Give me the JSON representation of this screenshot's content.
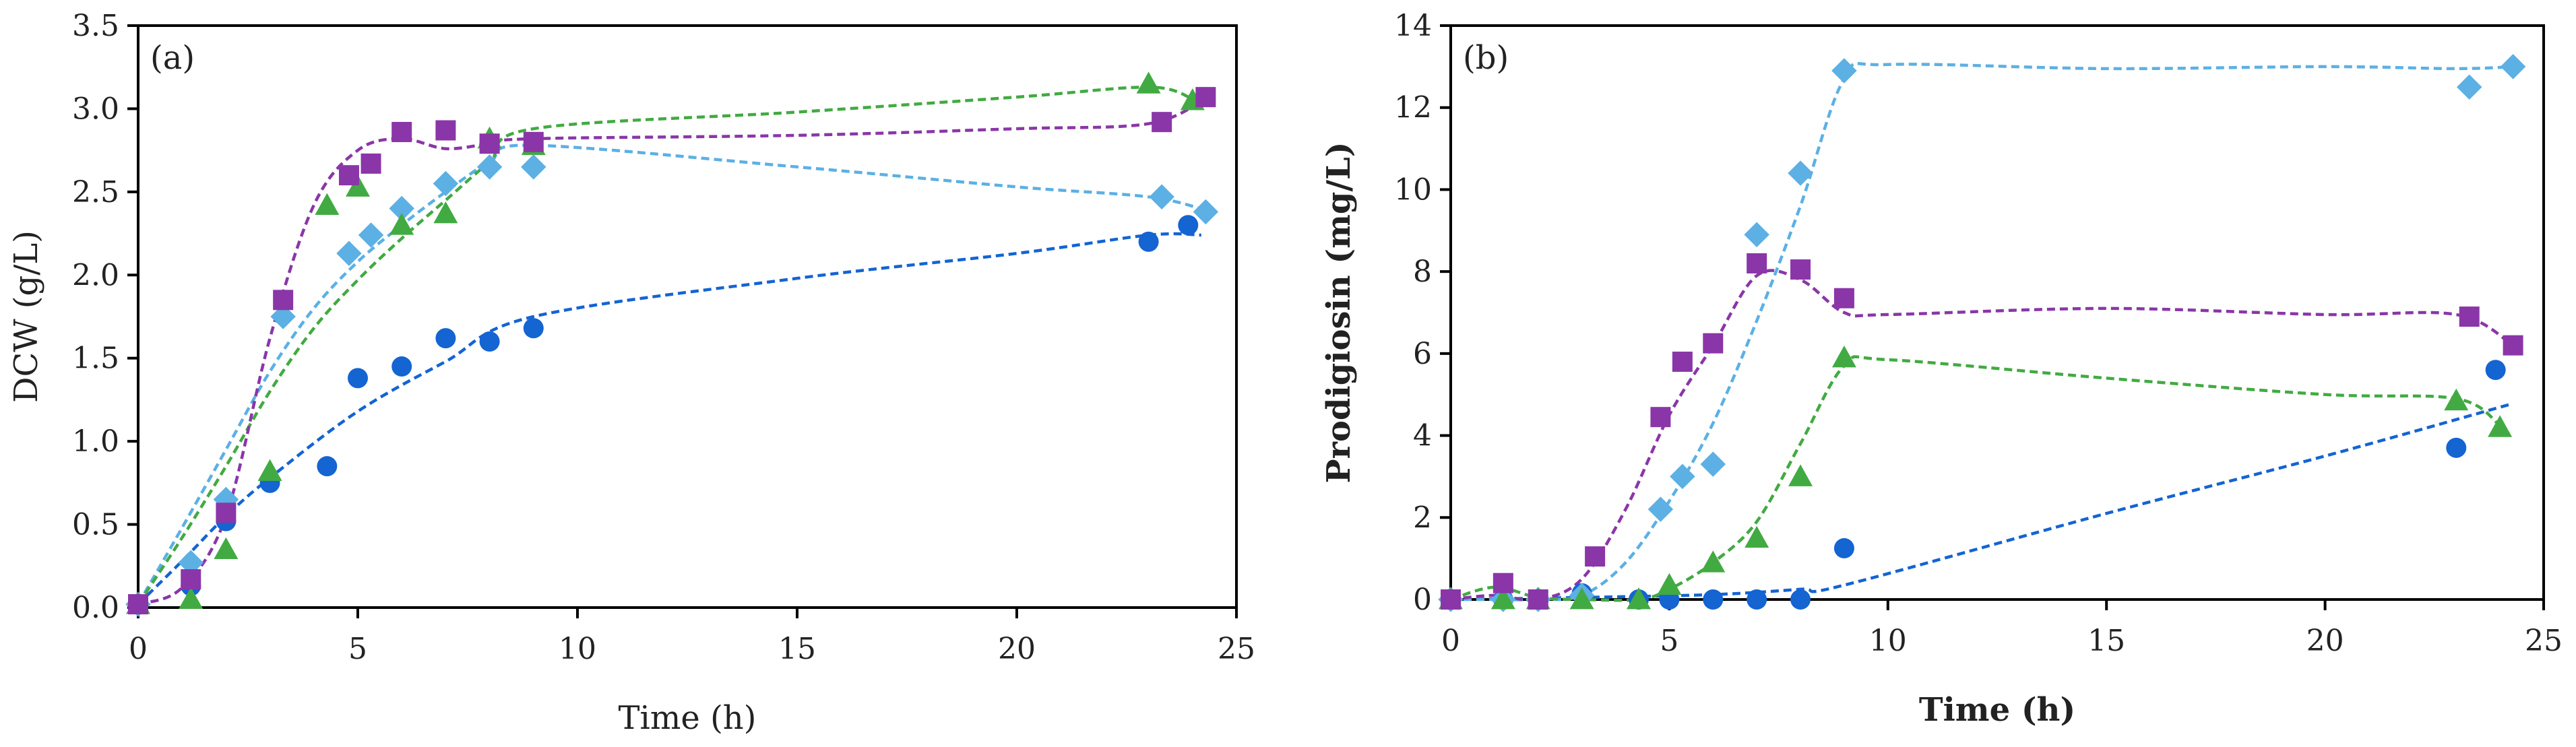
{
  "colors": {
    "blue": "#1464d2",
    "lightblue": "#5cb0e4",
    "green": "#42aa42",
    "purple": "#8a36a8"
  },
  "chart_data": [
    {
      "type": "scatter",
      "panel_label": "(a)",
      "xlabel": "Time (h)",
      "ylabel": "DCW (g/L)",
      "xlabel_bold": false,
      "ylabel_bold": false,
      "xlim": [
        0,
        25
      ],
      "ylim": [
        0,
        3.5
      ],
      "xticks": [
        0,
        5,
        10,
        15,
        20,
        25
      ],
      "yticks": [
        0,
        0.5,
        1,
        1.5,
        2,
        2.5,
        3,
        3.5
      ],
      "ytick_labels": [
        "0.0",
        "0.5",
        "1.0",
        "1.5",
        "2.0",
        "2.5",
        "3.0",
        "3.5"
      ],
      "grid": false,
      "series": [
        {
          "name": "blue circles",
          "color": "blue",
          "marker": "circle",
          "points": [
            [
              0,
              0.02
            ],
            [
              1.2,
              0.13
            ],
            [
              2.0,
              0.52
            ],
            [
              3.0,
              0.75
            ],
            [
              4.3,
              0.85
            ],
            [
              5.0,
              1.38
            ],
            [
              6.0,
              1.45
            ],
            [
              7.0,
              1.62
            ],
            [
              8.0,
              1.6
            ],
            [
              9.0,
              1.68
            ],
            [
              23.0,
              2.2
            ],
            [
              23.9,
              2.3
            ]
          ],
          "fit": [
            [
              0,
              0.02
            ],
            [
              1,
              0.28
            ],
            [
              2,
              0.55
            ],
            [
              3,
              0.78
            ],
            [
              5,
              1.18
            ],
            [
              7,
              1.48
            ],
            [
              9,
              1.75
            ],
            [
              15,
              1.98
            ],
            [
              20,
              2.13
            ],
            [
              23,
              2.24
            ],
            [
              24.2,
              2.24
            ]
          ]
        },
        {
          "name": "light blue diamonds",
          "color": "lightblue",
          "marker": "diamond",
          "points": [
            [
              0,
              0.02
            ],
            [
              1.2,
              0.27
            ],
            [
              2.0,
              0.65
            ],
            [
              3.3,
              1.75
            ],
            [
              4.8,
              2.13
            ],
            [
              5.3,
              2.24
            ],
            [
              6.0,
              2.4
            ],
            [
              7.0,
              2.55
            ],
            [
              8.0,
              2.65
            ],
            [
              9.0,
              2.65
            ],
            [
              23.3,
              2.47
            ],
            [
              24.3,
              2.38
            ]
          ],
          "fit": [
            [
              0,
              0.02
            ],
            [
              1,
              0.48
            ],
            [
              2,
              0.95
            ],
            [
              3,
              1.42
            ],
            [
              4,
              1.8
            ],
            [
              5,
              2.08
            ],
            [
              6,
              2.3
            ],
            [
              7,
              2.5
            ],
            [
              8,
              2.68
            ],
            [
              9,
              2.78
            ],
            [
              15,
              2.65
            ],
            [
              20,
              2.53
            ],
            [
              23,
              2.47
            ],
            [
              24.3,
              2.39
            ]
          ]
        },
        {
          "name": "green triangles",
          "color": "green",
          "marker": "triangle",
          "points": [
            [
              0,
              0.02
            ],
            [
              1.2,
              0.05
            ],
            [
              2.0,
              0.35
            ],
            [
              3.0,
              0.82
            ],
            [
              4.3,
              2.42
            ],
            [
              5.0,
              2.53
            ],
            [
              6.0,
              2.3
            ],
            [
              7.0,
              2.37
            ],
            [
              8.0,
              2.82
            ],
            [
              9.0,
              2.78
            ],
            [
              23.0,
              3.15
            ],
            [
              24.0,
              3.05
            ]
          ],
          "fit": [
            [
              0,
              0.02
            ],
            [
              1,
              0.42
            ],
            [
              2,
              0.85
            ],
            [
              3,
              1.3
            ],
            [
              4,
              1.68
            ],
            [
              5,
              1.97
            ],
            [
              6,
              2.22
            ],
            [
              7,
              2.45
            ],
            [
              8,
              2.68
            ],
            [
              9,
              2.88
            ],
            [
              15,
              2.98
            ],
            [
              20,
              3.07
            ],
            [
              23,
              3.13
            ],
            [
              24,
              3.06
            ]
          ]
        },
        {
          "name": "purple squares",
          "color": "purple",
          "marker": "square",
          "points": [
            [
              0,
              0.02
            ],
            [
              1.2,
              0.17
            ],
            [
              2.0,
              0.57
            ],
            [
              3.3,
              1.85
            ],
            [
              4.8,
              2.6
            ],
            [
              5.3,
              2.67
            ],
            [
              6.0,
              2.86
            ],
            [
              7.0,
              2.87
            ],
            [
              8.0,
              2.79
            ],
            [
              9.0,
              2.8
            ],
            [
              23.3,
              2.92
            ],
            [
              24.3,
              3.07
            ]
          ],
          "fit": [
            [
              0,
              0.02
            ],
            [
              1,
              0.12
            ],
            [
              2,
              0.55
            ],
            [
              3,
              1.62
            ],
            [
              4,
              2.42
            ],
            [
              5,
              2.75
            ],
            [
              6,
              2.82
            ],
            [
              7,
              2.76
            ],
            [
              8,
              2.79
            ],
            [
              9,
              2.82
            ],
            [
              15,
              2.84
            ],
            [
              20,
              2.88
            ],
            [
              23,
              2.91
            ],
            [
              24.3,
              3.06
            ]
          ]
        }
      ]
    },
    {
      "type": "scatter",
      "panel_label": "(b)",
      "xlabel": "Time (h)",
      "ylabel": "Prodigiosin (mg/L)",
      "xlabel_bold": true,
      "ylabel_bold": true,
      "xlim": [
        0,
        25
      ],
      "ylim": [
        0,
        14
      ],
      "xticks": [
        0,
        5,
        10,
        15,
        20,
        25
      ],
      "yticks": [
        0,
        2,
        4,
        6,
        8,
        10,
        12,
        14
      ],
      "ytick_labels": [
        "0",
        "2",
        "4",
        "6",
        "8",
        "10",
        "12",
        "14"
      ],
      "grid": false,
      "series": [
        {
          "name": "blue circles",
          "color": "blue",
          "marker": "circle",
          "points": [
            [
              0,
              0
            ],
            [
              1.2,
              0
            ],
            [
              2.0,
              0
            ],
            [
              3.0,
              0.15
            ],
            [
              4.3,
              0
            ],
            [
              5.0,
              0
            ],
            [
              6.0,
              0
            ],
            [
              7.0,
              0
            ],
            [
              8.0,
              0
            ],
            [
              9.0,
              1.25
            ],
            [
              23.0,
              3.7
            ],
            [
              23.9,
              5.6
            ]
          ],
          "fit": [
            [
              0,
              0
            ],
            [
              3,
              0.05
            ],
            [
              6,
              0.12
            ],
            [
              8,
              0.25
            ],
            [
              9,
              0.35
            ],
            [
              15,
              2.1
            ],
            [
              20,
              3.5
            ],
            [
              24.2,
              4.75
            ]
          ]
        },
        {
          "name": "light blue diamonds",
          "color": "lightblue",
          "marker": "diamond",
          "points": [
            [
              0,
              0
            ],
            [
              1.2,
              0
            ],
            [
              2.0,
              0
            ],
            [
              3.0,
              0.1
            ],
            [
              4.8,
              2.2
            ],
            [
              5.3,
              3.0
            ],
            [
              6.0,
              3.3
            ],
            [
              7.0,
              8.9
            ],
            [
              8.0,
              10.4
            ],
            [
              9.0,
              12.9
            ],
            [
              23.3,
              12.5
            ],
            [
              24.3,
              13.0
            ]
          ],
          "fit": [
            [
              0,
              0
            ],
            [
              1,
              0
            ],
            [
              2,
              0
            ],
            [
              3,
              0.1
            ],
            [
              4,
              0.9
            ],
            [
              5,
              2.4
            ],
            [
              6,
              4.3
            ],
            [
              7,
              6.8
            ],
            [
              8,
              9.6
            ],
            [
              9,
              12.7
            ],
            [
              10,
              13.05
            ],
            [
              15,
              12.95
            ],
            [
              20,
              13.0
            ],
            [
              23,
              12.95
            ],
            [
              24.3,
              13.0
            ]
          ]
        },
        {
          "name": "green triangles",
          "color": "green",
          "marker": "triangle",
          "points": [
            [
              0,
              0
            ],
            [
              1.2,
              0
            ],
            [
              2.0,
              0
            ],
            [
              3.0,
              0
            ],
            [
              4.3,
              0
            ],
            [
              5.0,
              0.35
            ],
            [
              6.0,
              0.9
            ],
            [
              7.0,
              1.5
            ],
            [
              8.0,
              3.0
            ],
            [
              9.0,
              5.9
            ],
            [
              23.0,
              4.85
            ],
            [
              24.0,
              4.2
            ]
          ],
          "fit": [
            [
              0,
              0
            ],
            [
              1,
              0.3
            ],
            [
              2,
              0.05
            ],
            [
              3,
              0
            ],
            [
              4.3,
              0
            ],
            [
              5,
              0.25
            ],
            [
              6,
              0.9
            ],
            [
              7,
              1.9
            ],
            [
              8,
              3.8
            ],
            [
              9,
              5.7
            ],
            [
              10,
              5.85
            ],
            [
              15,
              5.4
            ],
            [
              20,
              5.0
            ],
            [
              23,
              4.9
            ],
            [
              24,
              4.25
            ]
          ]
        },
        {
          "name": "purple squares",
          "color": "purple",
          "marker": "square",
          "points": [
            [
              0,
              0
            ],
            [
              1.2,
              0.4
            ],
            [
              2.0,
              0
            ],
            [
              3.3,
              1.05
            ],
            [
              4.8,
              4.45
            ],
            [
              5.3,
              5.8
            ],
            [
              6.0,
              6.25
            ],
            [
              7.0,
              8.2
            ],
            [
              8.0,
              8.05
            ],
            [
              9.0,
              7.35
            ],
            [
              23.3,
              6.9
            ],
            [
              24.3,
              6.2
            ]
          ],
          "fit": [
            [
              0,
              0
            ],
            [
              1,
              0.1
            ],
            [
              2,
              0
            ],
            [
              3,
              0.5
            ],
            [
              4,
              2.2
            ],
            [
              5,
              4.5
            ],
            [
              6,
              6.2
            ],
            [
              7,
              7.9
            ],
            [
              8,
              7.8
            ],
            [
              9,
              7.0
            ],
            [
              10,
              6.95
            ],
            [
              15,
              7.1
            ],
            [
              20,
              6.95
            ],
            [
              23,
              6.95
            ],
            [
              24.3,
              6.2
            ]
          ]
        }
      ]
    }
  ]
}
